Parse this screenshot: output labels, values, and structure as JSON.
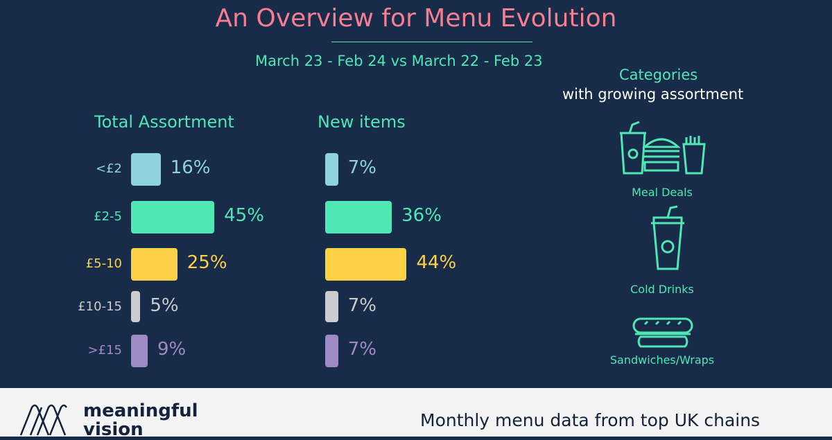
{
  "title": "An Overview for Menu Evolution",
  "subtitle": "March 23 - Feb 24 vs March 22 - Feb 23",
  "chart_data": {
    "type": "bar",
    "orientation": "horizontal",
    "categories": [
      "<£2",
      "£2-5",
      "£5-10",
      "£10-15",
      ">£15"
    ],
    "category_colors": [
      "#8ed1df",
      "#4fe8b5",
      "#fcd146",
      "#cccccc",
      "#9e8bc5"
    ],
    "series": [
      {
        "name": "Total Assortment",
        "values": [
          16,
          45,
          25,
          5,
          9
        ],
        "labels": [
          "16%",
          "45%",
          "25%",
          "5%",
          "9%"
        ]
      },
      {
        "name": "New items",
        "values": [
          7,
          36,
          44,
          7,
          7
        ],
        "labels": [
          "7%",
          "36%",
          "44%",
          "7%",
          "7%"
        ]
      }
    ]
  },
  "categories_panel": {
    "heading": "Categories",
    "subheading": "with growing assortment",
    "items": [
      {
        "label": "Meal Deals",
        "icon": "meal-deal-icon"
      },
      {
        "label": "Cold Drinks",
        "icon": "cold-drink-icon"
      },
      {
        "label": "Sandwiches/Wraps",
        "icon": "sandwich-icon"
      }
    ]
  },
  "footer": {
    "brand_line1": "meaningful",
    "brand_line2": "vision",
    "tagline": "Monthly menu data from top UK chains"
  },
  "colors": {
    "background": "#182b48",
    "title": "#f57f91",
    "accent": "#4fe8b5",
    "footer": "#f4f4f4"
  }
}
